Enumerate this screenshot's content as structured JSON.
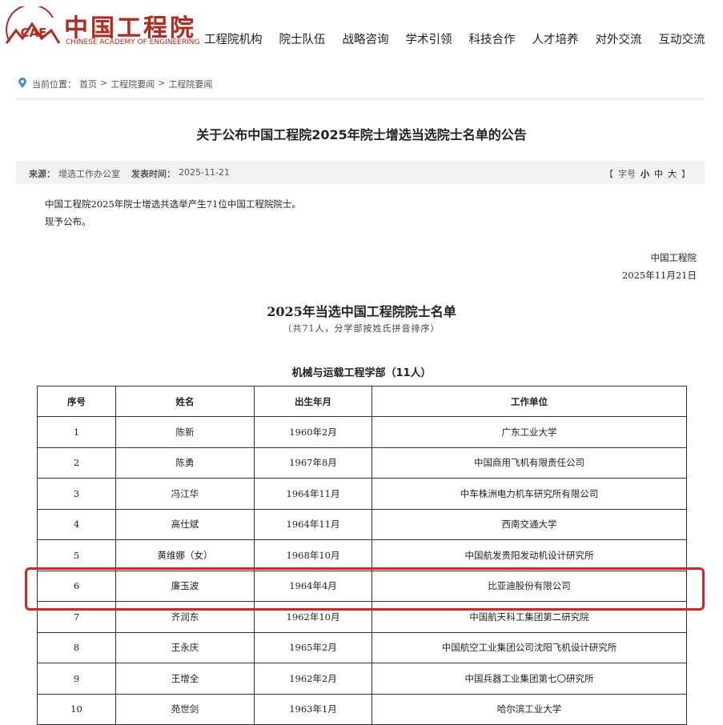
{
  "header": {
    "logo_mark": "CAE",
    "logo_cn": "中国工程院",
    "logo_en": "CHINESE ACADEMY OF ENGINEERING",
    "nav": [
      "工程院机构",
      "院士队伍",
      "战略咨询",
      "学术引领",
      "科技合作",
      "人才培养",
      "对外交流",
      "互动交流"
    ]
  },
  "breadcrumb": {
    "label": "当前位置：",
    "separator": ">",
    "items": [
      "首页",
      "工程院要闻",
      "工程院要闻"
    ]
  },
  "article": {
    "title": "关于公布中国工程院2025年院士增选当选院士名单的公告",
    "meta": {
      "source_label": "来源：",
      "source": "增选工作办公室",
      "date_label": "发表时间：",
      "date": "2025-11-21",
      "font_size": {
        "open": "【",
        "label": "字号",
        "options": [
          "小",
          "中",
          "大"
        ],
        "close": "】"
      }
    },
    "paragraphs": [
      "中国工程院2025年院士增选共选举产生71位中国工程院院士。",
      "现予公布。"
    ],
    "signature": {
      "org": "中国工程院",
      "date": "2025年11月21日"
    }
  },
  "list": {
    "title": "2025年当选中国工程院院士名单",
    "subtitle": "（共71人，分学部按姓氏拼音排序）",
    "section": "机械与运载工程学部（11人）",
    "table": {
      "header": [
        "序号",
        "姓名",
        "出生年月",
        "工作单位"
      ],
      "rows": [
        [
          "1",
          "陈新",
          "1960年2月",
          "广东工业大学"
        ],
        [
          "2",
          "陈勇",
          "1967年8月",
          "中国商用飞机有限责任公司"
        ],
        [
          "3",
          "冯江华",
          "1964年11月",
          "中车株洲电力机车研究所有限公司"
        ],
        [
          "4",
          "高仕斌",
          "1964年11月",
          "西南交通大学"
        ],
        [
          "5",
          "黄维娜（女）",
          "1968年10月",
          "中国航发贵阳发动机设计研究所"
        ],
        [
          "6",
          "廉玉波",
          "1964年4月",
          "比亚迪股份有限公司"
        ],
        [
          "7",
          "齐润东",
          "1962年10月",
          "中国航天科工集团第二研究院"
        ],
        [
          "8",
          "王永庆",
          "1965年2月",
          "中国航空工业集团公司沈阳飞机设计研究所"
        ],
        [
          "9",
          "王增全",
          "1962年2月",
          "中国兵器工业集团第七〇研究所"
        ],
        [
          "10",
          "苑世剑",
          "1963年1月",
          "哈尔滨工业大学"
        ]
      ]
    }
  }
}
